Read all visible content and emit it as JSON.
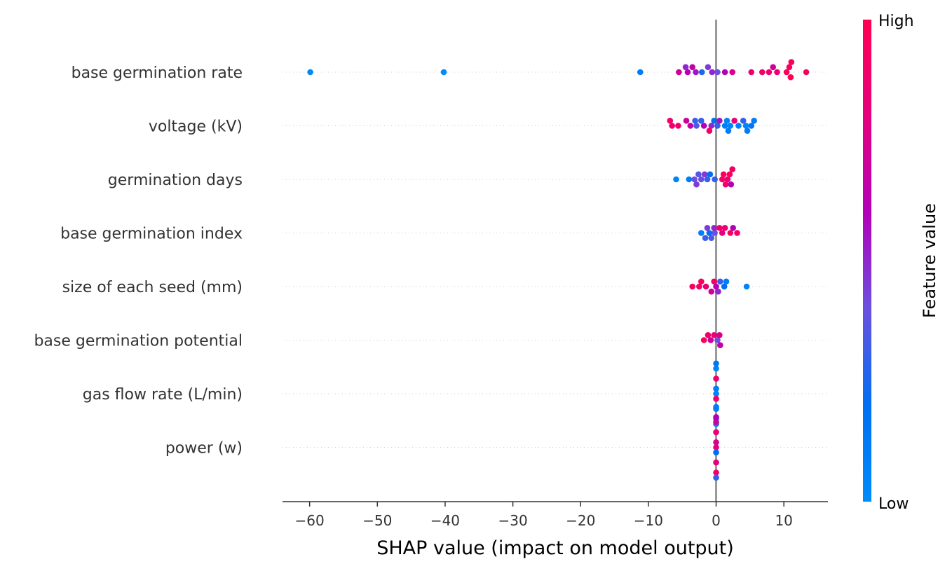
{
  "chart_data": {
    "type": "scatter",
    "subtype": "shap-beeswarm",
    "xlabel": "SHAP value (impact on model output)",
    "xlim": [
      -64,
      16.5
    ],
    "xticks": [
      -60,
      -50,
      -40,
      -30,
      -20,
      -10,
      0,
      10
    ],
    "xtick_labels": [
      "−60",
      "−50",
      "−40",
      "−30",
      "−20",
      "−10",
      "0",
      "10"
    ],
    "colorbar": {
      "title": "Feature value",
      "high_label": "High",
      "low_label": "Low",
      "low_color": "#008bfb",
      "high_color": "#ff0051",
      "mid_color": "#b300b8"
    },
    "zero_line_color": "#999999",
    "features": [
      {
        "name": "base germination rate",
        "points": [
          {
            "x": -59.9,
            "v": 0.0
          },
          {
            "x": -40.2,
            "v": 0.0
          },
          {
            "x": -11.2,
            "v": 0.1
          },
          {
            "x": -5.5,
            "v": 0.7
          },
          {
            "x": -4.5,
            "v": 0.5
          },
          {
            "x": -4.2,
            "v": 0.6
          },
          {
            "x": -3.5,
            "v": 0.65
          },
          {
            "x": -3.0,
            "v": 0.55
          },
          {
            "x": -2.1,
            "v": 0.25
          },
          {
            "x": -1.2,
            "v": 0.45
          },
          {
            "x": -0.6,
            "v": 0.5
          },
          {
            "x": 0.2,
            "v": 0.4
          },
          {
            "x": 1.3,
            "v": 0.6
          },
          {
            "x": 2.4,
            "v": 0.75
          },
          {
            "x": 5.2,
            "v": 0.85
          },
          {
            "x": 6.8,
            "v": 0.9
          },
          {
            "x": 7.8,
            "v": 0.88
          },
          {
            "x": 8.4,
            "v": 0.7
          },
          {
            "x": 9.0,
            "v": 0.85
          },
          {
            "x": 10.4,
            "v": 0.95
          },
          {
            "x": 10.8,
            "v": 0.95
          },
          {
            "x": 11.0,
            "v": 1.0
          },
          {
            "x": 11.1,
            "v": 0.95
          },
          {
            "x": 13.3,
            "v": 0.95
          }
        ]
      },
      {
        "name": "voltage (kV)",
        "points": [
          {
            "x": -6.8,
            "v": 0.9
          },
          {
            "x": -6.5,
            "v": 0.85
          },
          {
            "x": -5.6,
            "v": 0.9
          },
          {
            "x": -4.4,
            "v": 0.7
          },
          {
            "x": -3.8,
            "v": 0.65
          },
          {
            "x": -3.1,
            "v": 0.3
          },
          {
            "x": -2.9,
            "v": 0.35
          },
          {
            "x": -2.2,
            "v": 0.3
          },
          {
            "x": -1.8,
            "v": 0.6
          },
          {
            "x": -1.0,
            "v": 0.9
          },
          {
            "x": -0.7,
            "v": 0.5
          },
          {
            "x": -0.3,
            "v": 0.2
          },
          {
            "x": 0.2,
            "v": 0.3
          },
          {
            "x": 0.5,
            "v": 0.55
          },
          {
            "x": 1.3,
            "v": 0.1
          },
          {
            "x": 1.6,
            "v": 0.05
          },
          {
            "x": 1.8,
            "v": 0.1
          },
          {
            "x": 2.1,
            "v": 0.05
          },
          {
            "x": 2.7,
            "v": 0.8
          },
          {
            "x": 3.3,
            "v": 0.1
          },
          {
            "x": 4.0,
            "v": 0.3
          },
          {
            "x": 4.4,
            "v": 0.05
          },
          {
            "x": 4.6,
            "v": 0.1
          },
          {
            "x": 5.2,
            "v": 0.15
          },
          {
            "x": 5.6,
            "v": 0.1
          }
        ]
      },
      {
        "name": "germination days",
        "points": [
          {
            "x": -5.9,
            "v": 0.05
          },
          {
            "x": -4.0,
            "v": 0.1
          },
          {
            "x": -3.2,
            "v": 0.4
          },
          {
            "x": -2.9,
            "v": 0.45
          },
          {
            "x": -2.6,
            "v": 0.35
          },
          {
            "x": -2.2,
            "v": 0.4
          },
          {
            "x": -1.7,
            "v": 0.45
          },
          {
            "x": -1.3,
            "v": 0.3
          },
          {
            "x": -0.9,
            "v": 0.2
          },
          {
            "x": -0.2,
            "v": 0.3
          },
          {
            "x": 0.9,
            "v": 0.9
          },
          {
            "x": 1.1,
            "v": 0.95
          },
          {
            "x": 1.4,
            "v": 0.9
          },
          {
            "x": 1.7,
            "v": 0.85
          },
          {
            "x": 2.0,
            "v": 0.95
          },
          {
            "x": 2.2,
            "v": 0.6
          },
          {
            "x": 2.4,
            "v": 0.9
          }
        ]
      },
      {
        "name": "base germination index",
        "points": [
          {
            "x": -2.2,
            "v": 0.1
          },
          {
            "x": -1.6,
            "v": 0.3
          },
          {
            "x": -1.3,
            "v": 0.45
          },
          {
            "x": -1.0,
            "v": 0.2
          },
          {
            "x": -0.7,
            "v": 0.35
          },
          {
            "x": -0.3,
            "v": 0.5
          },
          {
            "x": -0.2,
            "v": 0.4
          },
          {
            "x": 0.5,
            "v": 0.9
          },
          {
            "x": 0.9,
            "v": 0.8
          },
          {
            "x": 1.3,
            "v": 0.85
          },
          {
            "x": 2.1,
            "v": 0.95
          },
          {
            "x": 2.5,
            "v": 0.6
          },
          {
            "x": 3.1,
            "v": 0.9
          }
        ]
      },
      {
        "name": "size of each seed (mm)",
        "points": [
          {
            "x": -3.5,
            "v": 0.95
          },
          {
            "x": -2.5,
            "v": 0.9
          },
          {
            "x": -2.2,
            "v": 0.95
          },
          {
            "x": -1.5,
            "v": 0.85
          },
          {
            "x": -0.7,
            "v": 0.7
          },
          {
            "x": -0.3,
            "v": 0.9
          },
          {
            "x": 0.0,
            "v": 0.6
          },
          {
            "x": 0.3,
            "v": 0.5
          },
          {
            "x": 0.6,
            "v": 0.3
          },
          {
            "x": 1.2,
            "v": 0.2
          },
          {
            "x": 1.5,
            "v": 0.1
          },
          {
            "x": 4.5,
            "v": 0.05
          }
        ]
      },
      {
        "name": "base germination potential",
        "points": [
          {
            "x": -1.8,
            "v": 0.95
          },
          {
            "x": -1.2,
            "v": 0.9
          },
          {
            "x": -0.8,
            "v": 0.7
          },
          {
            "x": -0.3,
            "v": 0.85
          },
          {
            "x": 0.2,
            "v": 0.4
          },
          {
            "x": 0.5,
            "v": 0.75
          },
          {
            "x": 0.6,
            "v": 0.65
          }
        ]
      },
      {
        "name": "gas flow rate (L/min)",
        "points": [
          {
            "x": 0.0,
            "v": 0.05
          },
          {
            "x": 0.0,
            "v": 0.1
          },
          {
            "x": 0.0,
            "v": 0.9
          },
          {
            "x": 0.0,
            "v": 0.85
          },
          {
            "x": 0.0,
            "v": 0.1
          },
          {
            "x": 0.0,
            "v": 0.05
          },
          {
            "x": 0.0,
            "v": 0.1
          },
          {
            "x": 0.0,
            "v": 0.15
          },
          {
            "x": 0.0,
            "v": 0.05
          }
        ]
      },
      {
        "name": "power (w)",
        "points": [
          {
            "x": 0.0,
            "v": 0.8
          },
          {
            "x": 0.0,
            "v": 0.75
          },
          {
            "x": 0.0,
            "v": 0.2
          },
          {
            "x": 0.0,
            "v": 0.85
          },
          {
            "x": 0.0,
            "v": 0.8
          },
          {
            "x": 0.0,
            "v": 0.7
          },
          {
            "x": 0.0,
            "v": 0.9
          },
          {
            "x": 0.0,
            "v": 0.6
          },
          {
            "x": 0.0,
            "v": 0.3
          },
          {
            "x": 0.0,
            "v": 0.1
          }
        ]
      }
    ]
  }
}
